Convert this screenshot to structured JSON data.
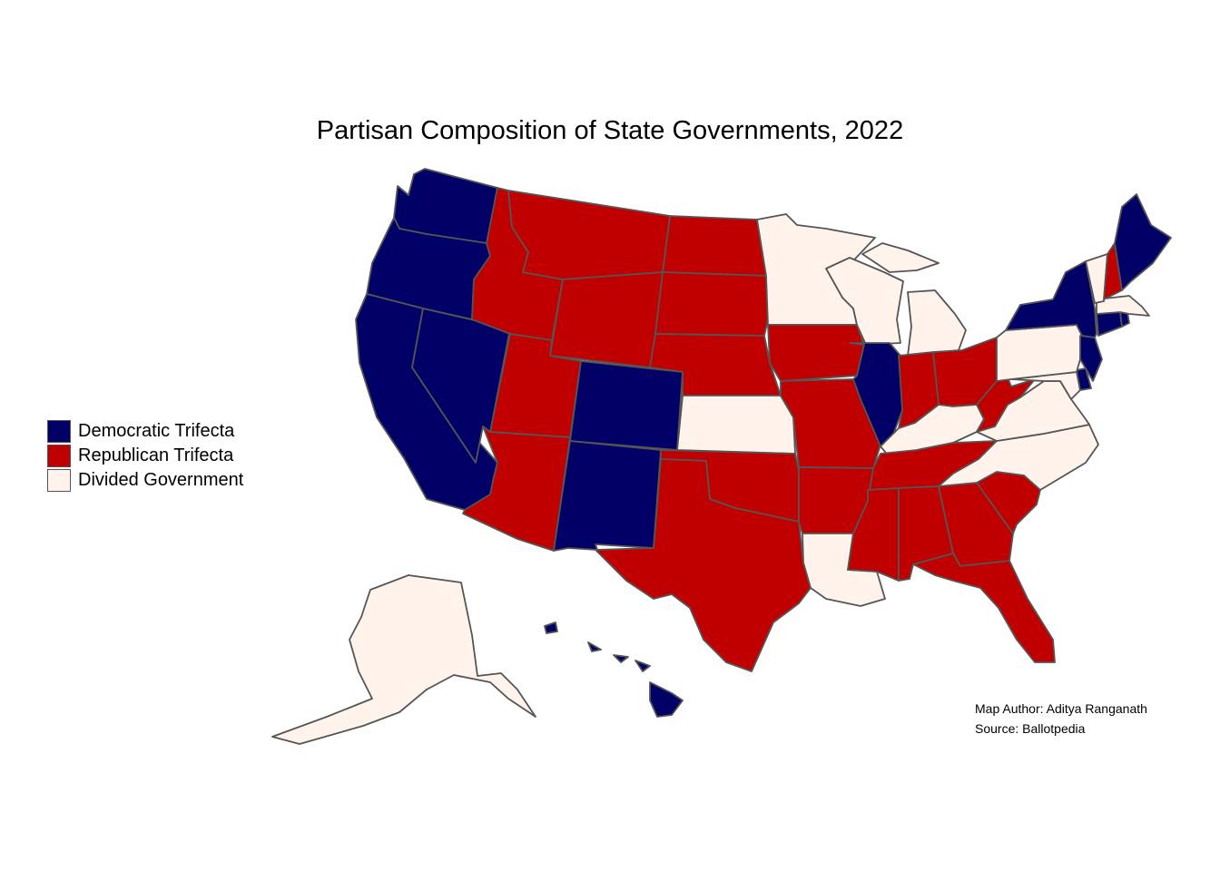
{
  "title": "Partisan Composition of State Governments, 2022",
  "legend": [
    {
      "key": "dem",
      "label": "Democratic Trifecta",
      "color": "#000066"
    },
    {
      "key": "rep",
      "label": "Republican Trifecta",
      "color": "#C00000"
    },
    {
      "key": "div",
      "label": "Divided Government",
      "color": "#FFF3EB"
    }
  ],
  "credits": {
    "author": "Map Author: Aditya Ranganath",
    "source": "Source: Ballotpedia"
  },
  "states": {
    "WA": "dem",
    "OR": "dem",
    "CA": "dem",
    "NV": "dem",
    "ID": "rep",
    "MT": "rep",
    "WY": "rep",
    "UT": "rep",
    "AZ": "rep",
    "CO": "dem",
    "NM": "dem",
    "ND": "rep",
    "SD": "rep",
    "NE": "rep",
    "KS": "div",
    "OK": "rep",
    "TX": "rep",
    "MN": "div",
    "IA": "rep",
    "MO": "rep",
    "AR": "rep",
    "LA": "div",
    "WI": "div",
    "IL": "dem",
    "MI": "div",
    "IN": "rep",
    "OH": "rep",
    "KY": "div",
    "TN": "rep",
    "MS": "rep",
    "AL": "rep",
    "GA": "rep",
    "FL": "rep",
    "SC": "rep",
    "NC": "div",
    "VA": "div",
    "WV": "rep",
    "MD": "div",
    "DE": "dem",
    "NJ": "dem",
    "PA": "div",
    "NY": "dem",
    "CT": "dem",
    "RI": "dem",
    "MA": "div",
    "VT": "div",
    "NH": "rep",
    "ME": "dem",
    "AK": "div",
    "HI": "dem"
  }
}
